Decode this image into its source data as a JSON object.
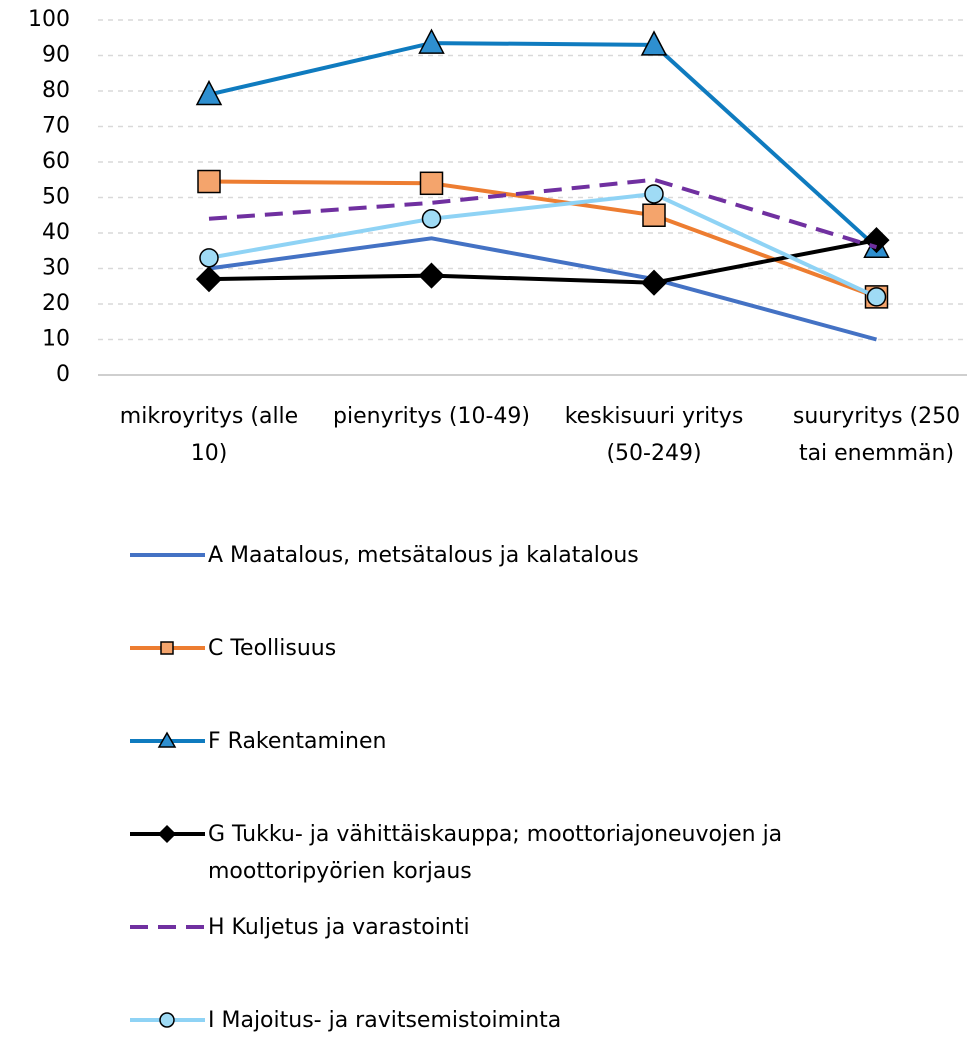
{
  "chart_data": {
    "type": "line",
    "categories": [
      "mikroyritys (alle 10)",
      "pienyritys (10-49)",
      "keskisuuri yritys (50-249)",
      "suuryritys (250 tai enemmän)"
    ],
    "series": [
      {
        "name": "A   Maatalous, metsätalous ja kalatalous",
        "color": "#4472c4",
        "values": [
          30,
          38.5,
          27,
          10
        ]
      },
      {
        "name": "C   Teollisuus",
        "color": "#ed7d31",
        "marker": "square",
        "marker_color": "#f4a46c",
        "values": [
          54.5,
          54,
          45,
          22
        ]
      },
      {
        "name": "F   Rakentaminen",
        "color": "#0f7bbf",
        "marker": "triangle",
        "marker_color": "#2e8fd0",
        "values": [
          79,
          93.5,
          93,
          36
        ]
      },
      {
        "name": "G   Tukku- ja vähittäiskauppa; moottoriajoneuvojen ja moottoripyörien korjaus",
        "color": "#000000",
        "marker": "diamond",
        "marker_color": "#000000",
        "values": [
          27,
          28,
          26,
          38
        ]
      },
      {
        "name": "H   Kuljetus ja varastointi",
        "color": "#7030a0",
        "dashed": true,
        "values": [
          44,
          48.5,
          55,
          36
        ]
      },
      {
        "name": "I   Majoitus- ja ravitsemistoiminta",
        "color": "#8fd3f5",
        "marker": "circle",
        "marker_color": "#9fdbf5",
        "values": [
          33,
          44,
          51,
          22
        ]
      }
    ],
    "ylim": [
      0,
      100
    ],
    "yticks": [
      0,
      10,
      20,
      30,
      40,
      50,
      60,
      70,
      80,
      90,
      100
    ],
    "grid": true
  }
}
